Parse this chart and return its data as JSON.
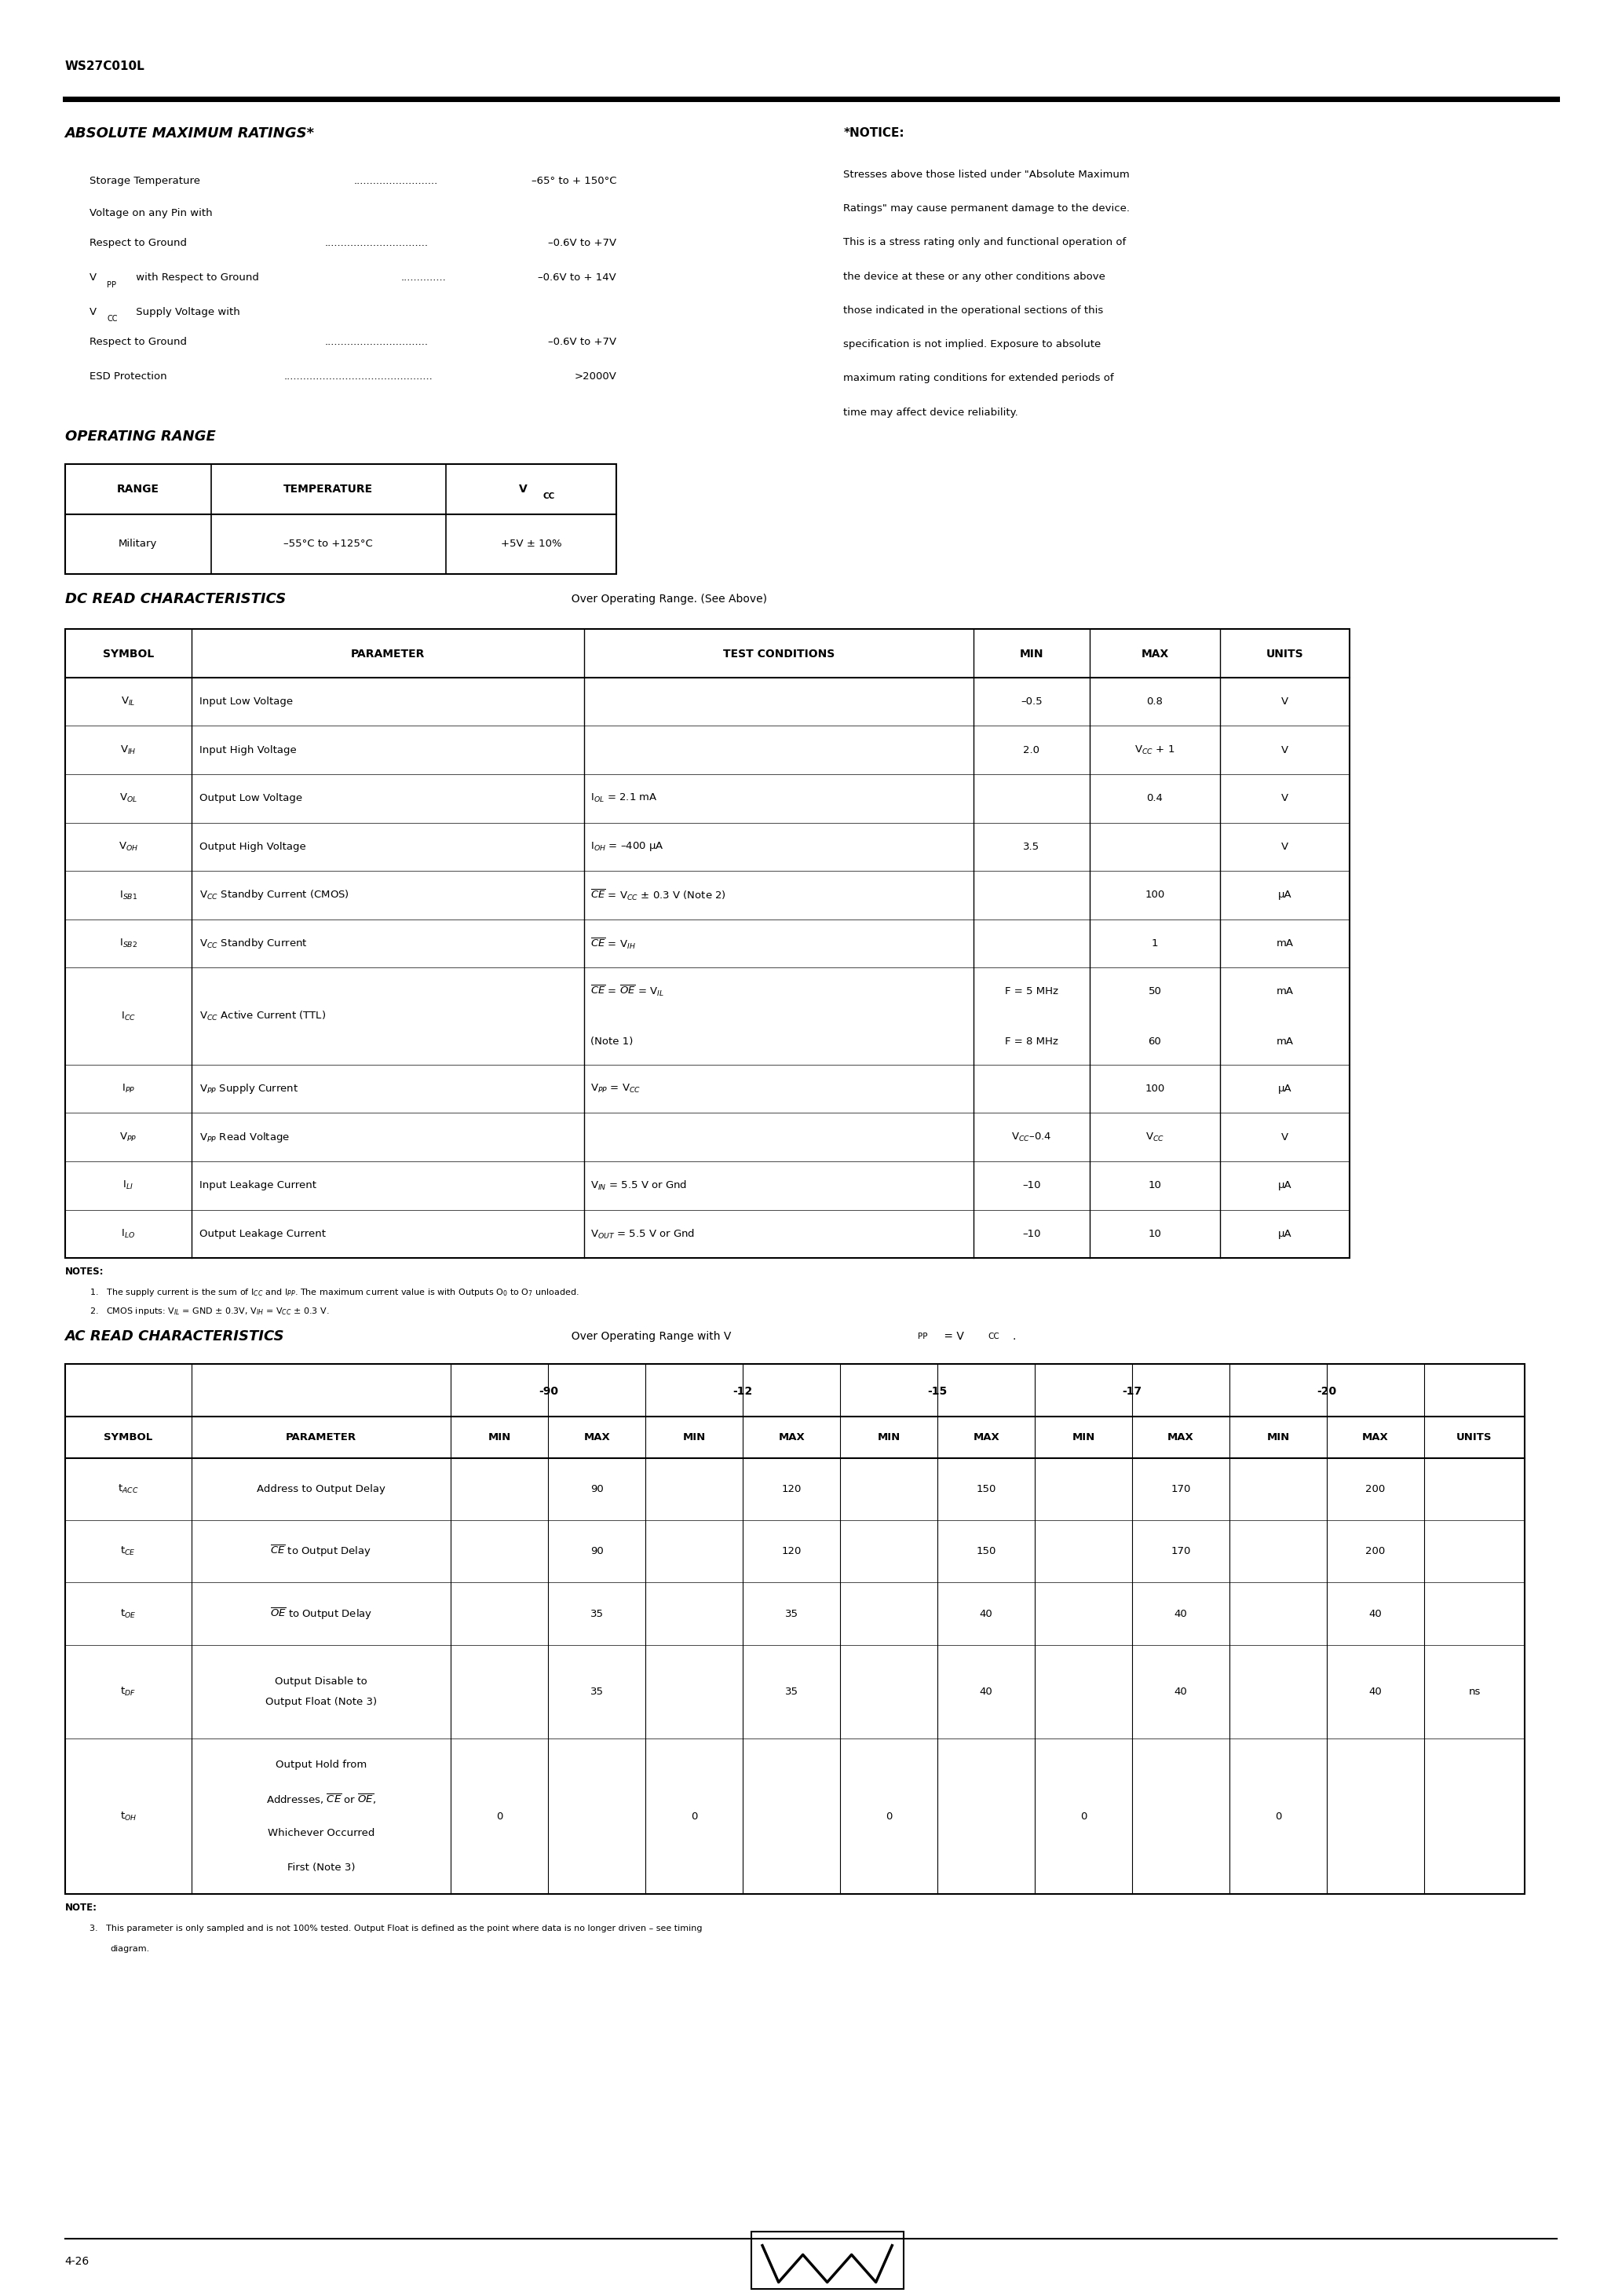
{
  "page_title": "WS27C010L",
  "page_number": "4-26",
  "abs_max_title": "ABSOLUTE MAXIMUM RATINGS*",
  "notice_title": "*NOTICE:",
  "notice_lines": [
    "Stresses above those listed under \"Absolute Maximum",
    "Ratings\" may cause permanent damage to the device.",
    "This is a stress rating only and functional operation of",
    "the device at these or any other conditions above",
    "those indicated in the operational sections of this",
    "specification is not implied. Exposure to absolute",
    "maximum rating conditions for extended periods of",
    "time may affect device reliability."
  ],
  "op_range_title": "OPERATING RANGE",
  "dc_read_title": "DC READ CHARACTERISTICS",
  "dc_read_sub": "  Over Operating Range. (See Above)",
  "ac_read_title": "AC READ CHARACTERISTICS",
  "ac_read_sub": "  Over Operating Range with V",
  "ac_read_sub2": " = V",
  "speed_cols": [
    "-90",
    "-12",
    "-15",
    "-17",
    "-20"
  ]
}
